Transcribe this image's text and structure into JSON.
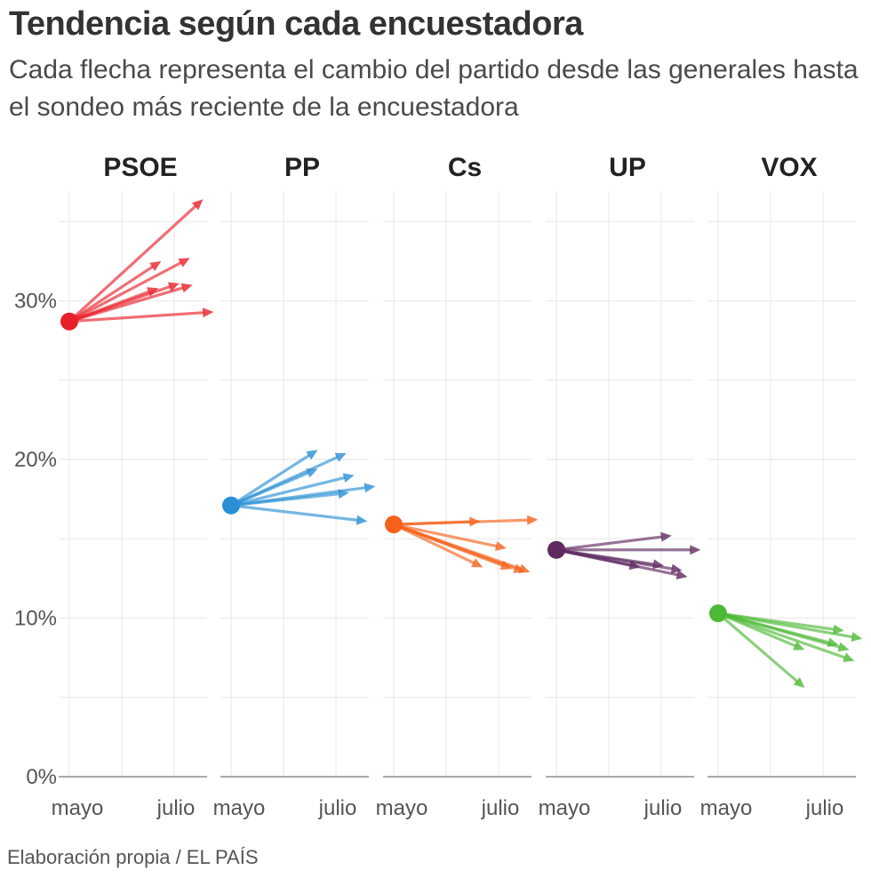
{
  "title": "Tendencia según cada encuestadora",
  "subtitle": "Cada flecha representa el cambio del partido desde las generales hasta el sondeo más reciente de la encuestadora",
  "source": "Elaboración propia / EL PAÍS",
  "chart_data": {
    "type": "arrow-slope",
    "y_axis": {
      "ylim": [
        0,
        38
      ],
      "ticks": [
        0,
        10,
        20,
        30
      ],
      "tick_labels": [
        "0%",
        "10%",
        "20%",
        "30%"
      ]
    },
    "x_axis": {
      "start": "mayo",
      "tick_labels": [
        "mayo",
        "julio"
      ],
      "xlim_months": [
        0,
        2.75
      ]
    },
    "gridlines": true,
    "panels": [
      {
        "party": "PSOE",
        "color": "#e8202a",
        "start": 28.7,
        "arrows": [
          {
            "x": 2.55,
            "y": 36.4
          },
          {
            "x": 1.75,
            "y": 32.5
          },
          {
            "x": 2.3,
            "y": 32.7
          },
          {
            "x": 2.1,
            "y": 31.1
          },
          {
            "x": 2.35,
            "y": 31.0
          },
          {
            "x": 1.7,
            "y": 30.8
          },
          {
            "x": 2.75,
            "y": 29.3
          }
        ]
      },
      {
        "party": "PP",
        "color": "#2a8fd4",
        "start": 17.1,
        "arrows": [
          {
            "x": 1.65,
            "y": 20.6
          },
          {
            "x": 2.2,
            "y": 20.4
          },
          {
            "x": 1.65,
            "y": 19.4
          },
          {
            "x": 2.35,
            "y": 19.0
          },
          {
            "x": 2.75,
            "y": 18.3
          },
          {
            "x": 2.25,
            "y": 17.9
          },
          {
            "x": 2.6,
            "y": 16.1
          }
        ]
      },
      {
        "party": "Cs",
        "color": "#f4621a",
        "start": 15.9,
        "arrows": [
          {
            "x": 1.65,
            "y": 16.1
          },
          {
            "x": 2.75,
            "y": 16.2
          },
          {
            "x": 2.15,
            "y": 14.4
          },
          {
            "x": 1.7,
            "y": 13.2
          },
          {
            "x": 2.25,
            "y": 13.1
          },
          {
            "x": 2.5,
            "y": 12.9
          },
          {
            "x": 2.6,
            "y": 12.9
          }
        ]
      },
      {
        "party": "UP",
        "color": "#5e2a5f",
        "start": 14.3,
        "arrows": [
          {
            "x": 2.2,
            "y": 15.2
          },
          {
            "x": 2.75,
            "y": 14.3
          },
          {
            "x": 2.05,
            "y": 13.3
          },
          {
            "x": 2.4,
            "y": 13.0
          },
          {
            "x": 1.6,
            "y": 13.2
          },
          {
            "x": 2.5,
            "y": 12.6
          }
        ]
      },
      {
        "party": "VOX",
        "color": "#4cb935",
        "start": 10.3,
        "arrows": [
          {
            "x": 2.4,
            "y": 9.2
          },
          {
            "x": 2.75,
            "y": 8.7
          },
          {
            "x": 2.3,
            "y": 8.3
          },
          {
            "x": 2.5,
            "y": 8.0
          },
          {
            "x": 1.65,
            "y": 8.0
          },
          {
            "x": 2.6,
            "y": 7.3
          },
          {
            "x": 1.65,
            "y": 5.6
          }
        ]
      }
    ]
  }
}
